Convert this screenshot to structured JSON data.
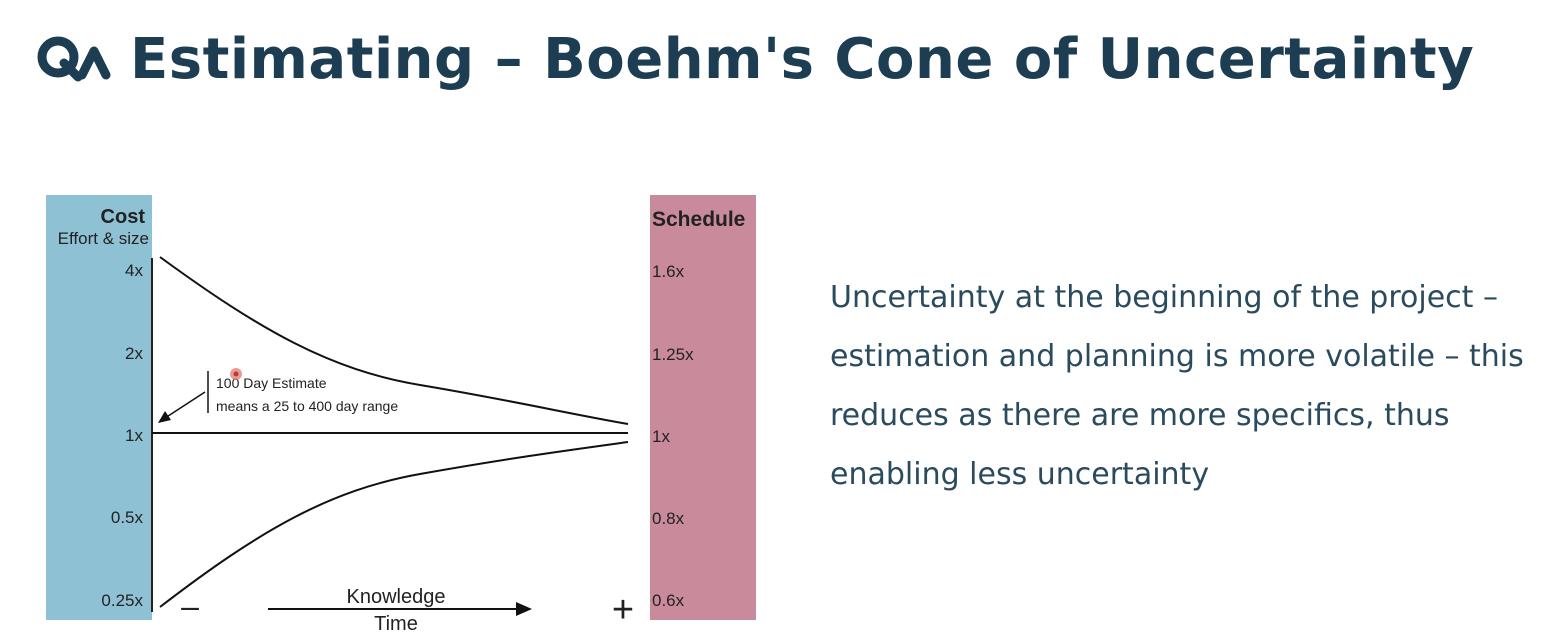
{
  "title": "Estimating – Boehm's Cone of Uncertainty",
  "logo": {
    "text": "QA",
    "icon": "qa-logo-icon"
  },
  "colors": {
    "title": "#1c3d52",
    "cost_band": "#8fc1d5",
    "schedule_band": "#c98b9c",
    "text": "#2a4b5e"
  },
  "diagram": {
    "cost_label": "Cost",
    "cost_sub_label": "Effort & size",
    "schedule_label": "Schedule",
    "cost_ticks": [
      "4x",
      "2x",
      "1x",
      "0.5x",
      "0.25x"
    ],
    "schedule_ticks": [
      "1.6x",
      "1.25x",
      "1x",
      "0.8x",
      "0.6x"
    ],
    "annotation_line1": "100 Day Estimate",
    "annotation_line2": "means a 25 to 400 day range",
    "minus_sign": "–",
    "plus_sign": "+",
    "arrow_label_top": "Knowledge",
    "arrow_label_bottom": "Time"
  },
  "description": "Uncertainty at the beginning of the project – estimation and planning is more volatile – this reduces as there are more specifics, thus enabling less uncertainty"
}
